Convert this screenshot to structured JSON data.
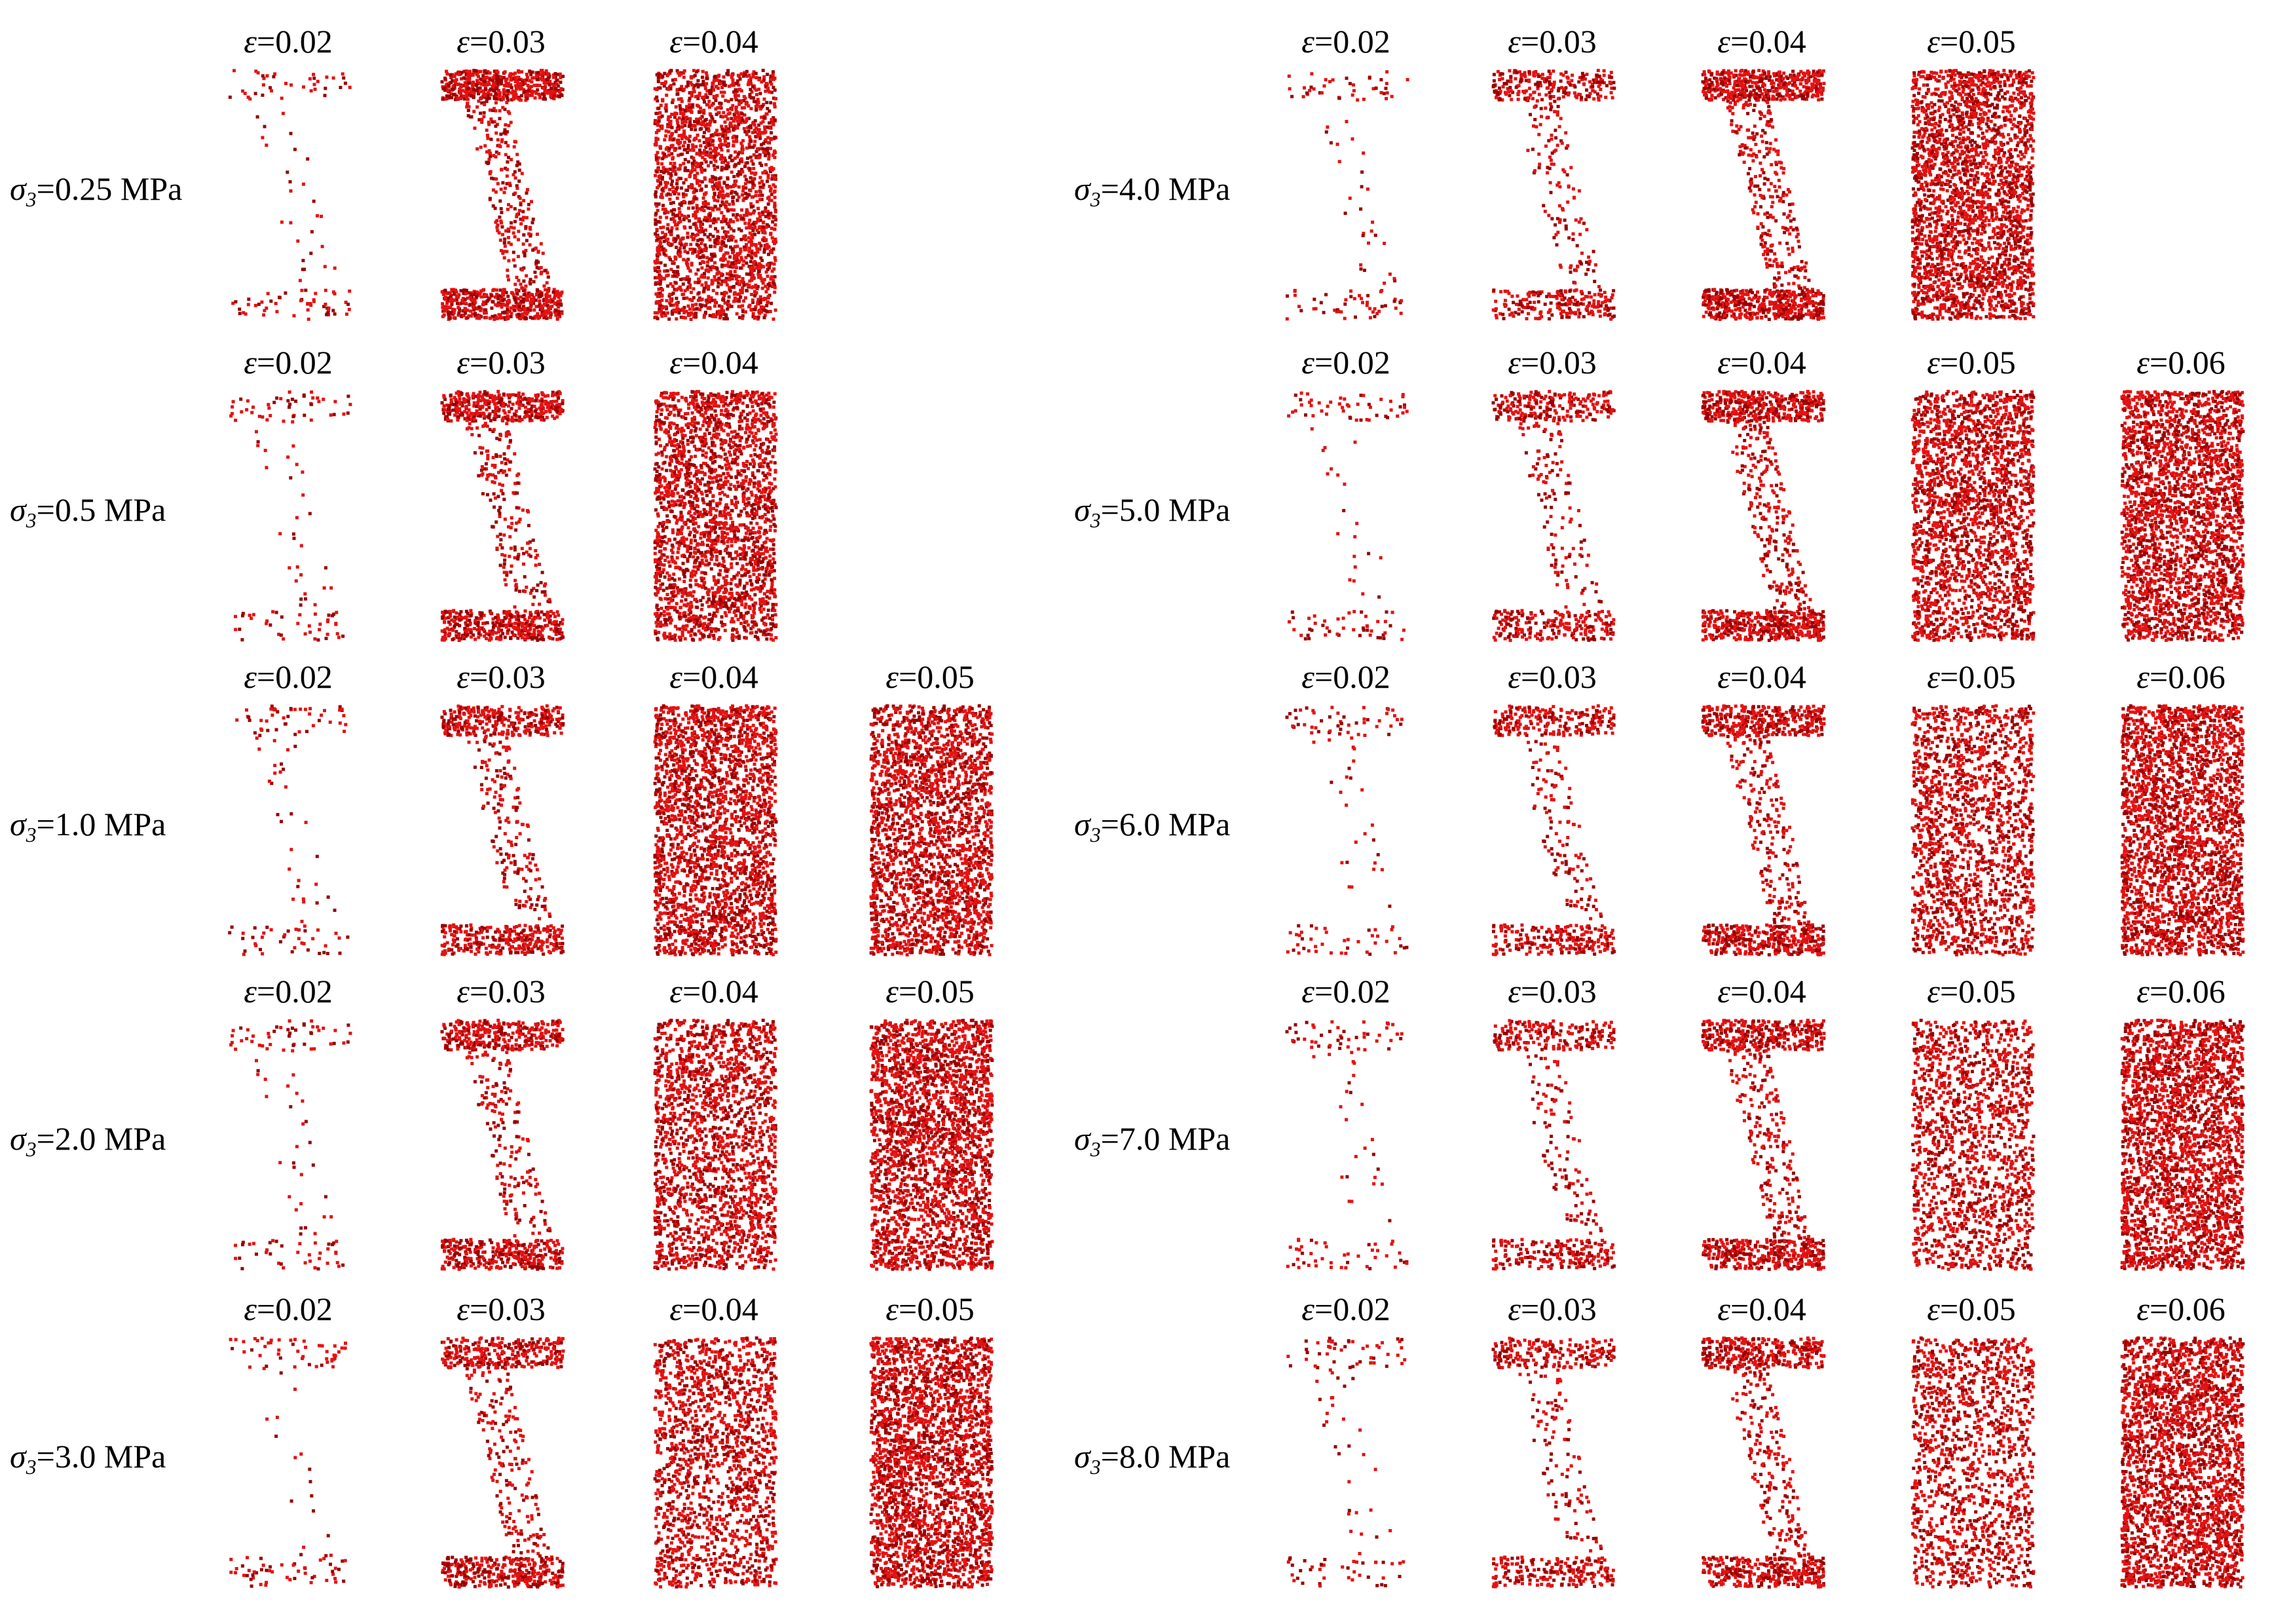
{
  "figure": {
    "strain_symbol": "ε",
    "stress_symbol": "σ",
    "stress_subscript": "3",
    "point_color": "#e41212",
    "point_dark_color": "#9a0000",
    "panels": [
      {
        "stress": "=0.25 MPa",
        "strains": [
          "=0.02",
          "=0.03",
          "=0.04"
        ],
        "density": [
          0.03,
          0.45,
          0.85
        ]
      },
      {
        "stress": "=0.5 MPa",
        "strains": [
          "=0.02",
          "=0.03",
          "=0.04"
        ],
        "density": [
          0.03,
          0.35,
          0.85
        ]
      },
      {
        "stress": "=1.0 MPa",
        "strains": [
          "=0.02",
          "=0.03",
          "=0.04",
          "=0.05"
        ],
        "density": [
          0.03,
          0.28,
          0.9,
          0.9
        ]
      },
      {
        "stress": "=2.0 MPa",
        "strains": [
          "=0.02",
          "=0.03",
          "=0.04",
          "=0.05"
        ],
        "density": [
          0.03,
          0.3,
          0.7,
          0.95
        ]
      },
      {
        "stress": "=3.0 MPa",
        "strains": [
          "=0.02",
          "=0.03",
          "=0.04",
          "=0.05"
        ],
        "density": [
          0.03,
          0.3,
          0.6,
          0.95
        ]
      },
      {
        "stress": "=4.0 MPa",
        "strains": [
          "=0.02",
          "=0.03",
          "=0.04",
          "=0.05"
        ],
        "density": [
          0.03,
          0.2,
          0.45,
          0.95
        ]
      },
      {
        "stress": "=5.0 MPa",
        "strains": [
          "=0.02",
          "=0.03",
          "=0.04",
          "=0.05",
          "=0.06"
        ],
        "density": [
          0.03,
          0.2,
          0.4,
          0.8,
          0.95
        ]
      },
      {
        "stress": "=6.0 MPa",
        "strains": [
          "=0.02",
          "=0.03",
          "=0.04",
          "=0.05",
          "=0.06"
        ],
        "density": [
          0.03,
          0.2,
          0.35,
          0.6,
          0.95
        ]
      },
      {
        "stress": "=7.0 MPa",
        "strains": [
          "=0.02",
          "=0.03",
          "=0.04",
          "=0.05",
          "=0.06"
        ],
        "density": [
          0.03,
          0.18,
          0.35,
          0.55,
          0.95
        ]
      },
      {
        "stress": "=8.0 MPa",
        "strains": [
          "=0.02",
          "=0.03",
          "=0.04",
          "=0.05",
          "=0.06"
        ],
        "density": [
          0.03,
          0.18,
          0.32,
          0.5,
          0.95
        ]
      }
    ]
  }
}
